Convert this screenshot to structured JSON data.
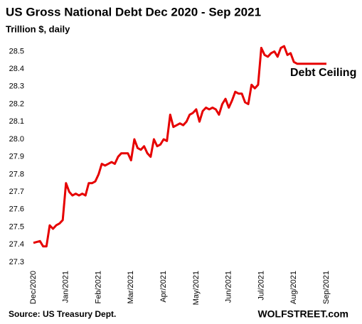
{
  "chart_data": {
    "type": "line",
    "title": "US Gross National  Debt Dec 2020 - Sep 2021",
    "subtitle": "Trillion $, daily",
    "annotation": "Debt Ceiling",
    "source": "Source: US Treasury Dept.",
    "credit": "WOLFSTREET.com",
    "categories": [
      "Dec/2020",
      null,
      null,
      null,
      null,
      null,
      null,
      null,
      null,
      null,
      "Jan/2021",
      null,
      null,
      null,
      null,
      null,
      null,
      null,
      null,
      null,
      "Feb/2021",
      null,
      null,
      null,
      null,
      null,
      null,
      null,
      null,
      null,
      "Mar/2021",
      null,
      null,
      null,
      null,
      null,
      null,
      null,
      null,
      null,
      "Apr/2021",
      null,
      null,
      null,
      null,
      null,
      null,
      null,
      null,
      null,
      "May/2021",
      null,
      null,
      null,
      null,
      null,
      null,
      null,
      null,
      null,
      "Jun/2021",
      null,
      null,
      null,
      null,
      null,
      null,
      null,
      null,
      null,
      "Jul/2021",
      null,
      null,
      null,
      null,
      null,
      null,
      null,
      null,
      null,
      "Aug/2021",
      null,
      null,
      null,
      null,
      null,
      null,
      null,
      null,
      null,
      "Sep/2021"
    ],
    "series": [
      {
        "name": "US Gross National Debt",
        "color": "#e60000",
        "values": [
          27.41,
          27.415,
          27.42,
          27.39,
          27.39,
          27.51,
          27.49,
          27.51,
          27.52,
          27.54,
          27.75,
          27.7,
          27.68,
          27.69,
          27.68,
          27.69,
          27.68,
          27.75,
          27.75,
          27.76,
          27.8,
          27.86,
          27.85,
          27.86,
          27.87,
          27.86,
          27.9,
          27.92,
          27.92,
          27.92,
          27.88,
          28.0,
          27.95,
          27.94,
          27.96,
          27.92,
          27.9,
          28.0,
          27.96,
          27.97,
          28.0,
          27.99,
          28.14,
          28.07,
          28.08,
          28.09,
          28.08,
          28.1,
          28.14,
          28.15,
          28.17,
          28.1,
          28.16,
          28.18,
          28.17,
          28.18,
          28.17,
          28.14,
          28.2,
          28.23,
          28.18,
          28.22,
          28.27,
          28.26,
          28.26,
          28.21,
          28.2,
          28.31,
          28.29,
          28.31,
          28.52,
          28.48,
          28.47,
          28.49,
          28.5,
          28.47,
          28.52,
          28.53,
          28.48,
          28.49,
          28.44,
          28.43,
          28.43,
          28.43,
          28.43,
          28.43,
          28.43,
          28.43,
          28.43,
          28.43,
          28.43
        ]
      }
    ],
    "ylim": [
      27.3,
      28.55
    ],
    "yticks": [
      27.3,
      27.4,
      27.5,
      27.6,
      27.7,
      27.8,
      27.9,
      {
        "value": 28,
        "label": "28.0"
      },
      28.1,
      28.2,
      28.3,
      28.4,
      28.5
    ],
    "grid": false
  }
}
